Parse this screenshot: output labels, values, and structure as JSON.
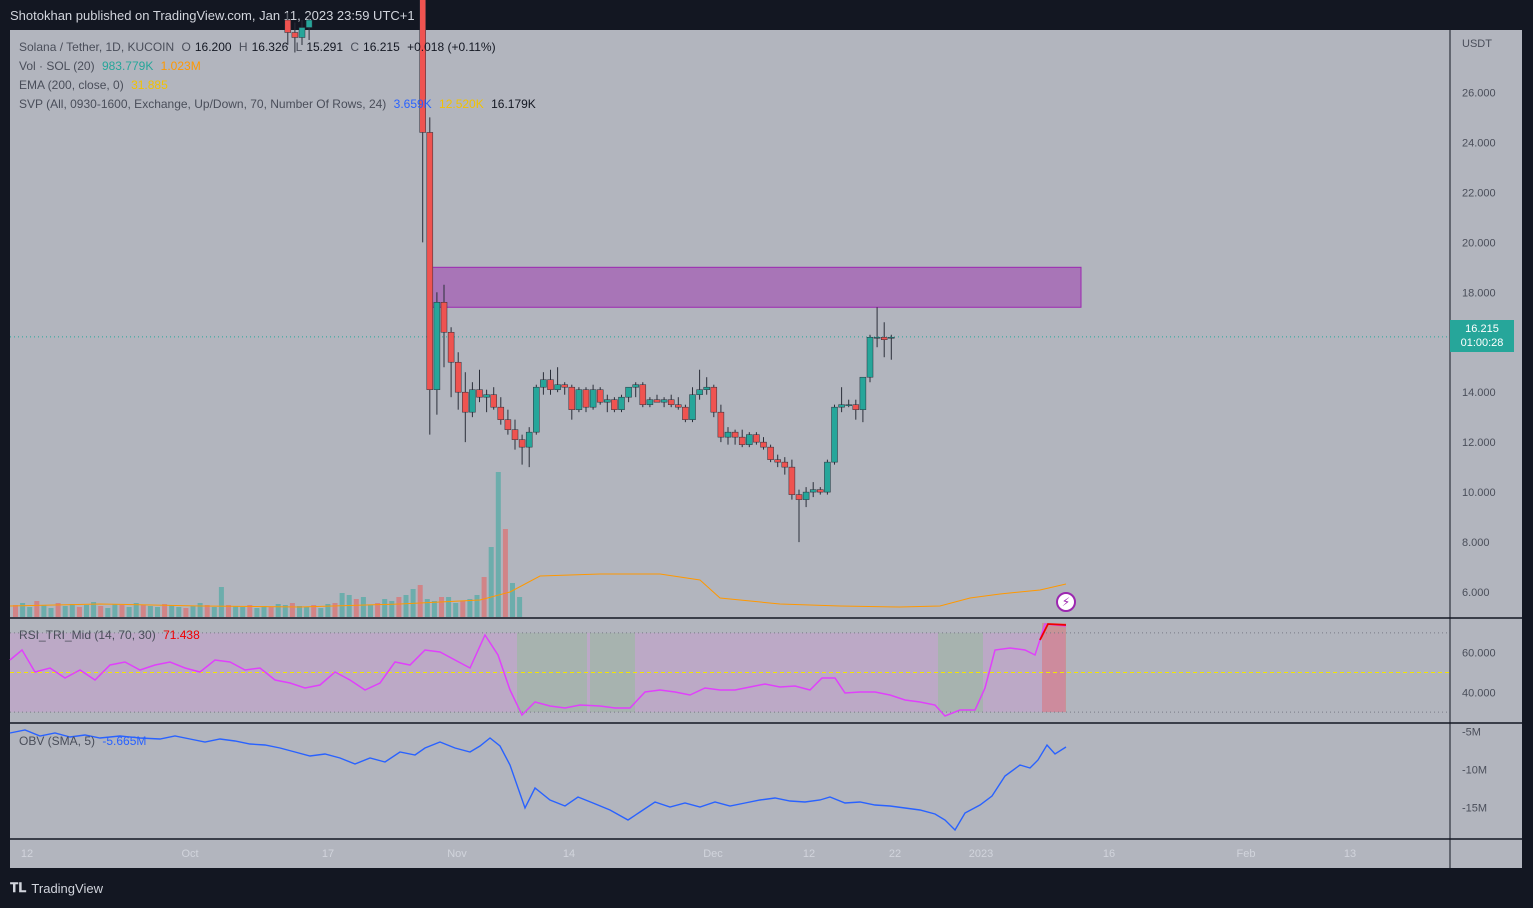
{
  "header": {
    "publisher_line": "Shotokhan published on TradingView.com, Jan 11, 2023 23:59 UTC+1"
  },
  "footer": {
    "brand": "TradingView"
  },
  "legend": {
    "symbol": "Solana / Tether, 1D, KUCOIN",
    "o_label": "O",
    "o_value": "16.200",
    "h_label": "H",
    "h_value": "16.326",
    "l_label": "L",
    "l_value": "15.291",
    "c_label": "C",
    "c_value": "16.215",
    "change": "+0.018 (+0.11%)",
    "vol_label": "Vol · SOL (20)",
    "vol_value": "983.779K",
    "vol_ma": "1.023M",
    "ema_label": "EMA (200, close, 0)",
    "ema_value": "31.885",
    "svp_label": "SVP (All, 0930-1600, Exchange, Up/Down, 70, Number Of Rows, 24)",
    "svp_up": "3.659K",
    "svp_down": "12.520K",
    "svp_total": "16.179K",
    "rsi_label": "RSI_TRI_Mid (14, 70, 30)",
    "rsi_value": "71.438",
    "obv_label": "OBV (SMA, 5)",
    "obv_value": "-5.665M"
  },
  "price_tag": {
    "price": "16.215",
    "countdown": "01:00:28"
  },
  "colors": {
    "background": "#131722",
    "pane": "#b2b5be",
    "up": "#26a69a",
    "down": "#ef5350",
    "zone": "#9c27b0",
    "rsi_line": "#e040fb",
    "obv_line": "#2962ff",
    "ema_line": "#ff9800"
  },
  "icons": {
    "lightning": "lightning-icon"
  },
  "chart_data": {
    "type": "candlestick",
    "symbol": "Solana / Tether",
    "interval": "1D",
    "exchange": "KUCOIN",
    "currency_label": "USDT",
    "price_axis": {
      "ticks": [
        "26.000",
        "24.000",
        "22.000",
        "20.000",
        "18.000",
        "16.000",
        "14.000",
        "12.000",
        "10.000",
        "8.000",
        "6.000"
      ],
      "ylim": [
        5,
        28.5
      ]
    },
    "rsi_axis": {
      "ticks": [
        "60.000",
        "40.000"
      ],
      "ylim": [
        25,
        77
      ]
    },
    "obv_axis": {
      "ticks": [
        "-5M",
        "-10M",
        "-15M"
      ],
      "ylim": [
        -19,
        -4
      ]
    },
    "time_axis": [
      "12",
      "Oct",
      "17",
      "Nov",
      "14",
      "Dec",
      "12",
      "22",
      "2023",
      "16",
      "Feb",
      "13"
    ],
    "resistance_zone": {
      "low": 17.4,
      "high": 19.0,
      "start": "2022-11-09",
      "end": "2023-02-09"
    },
    "last_price": 16.215,
    "candles": [
      {
        "d": "2022-10-20",
        "o": 28.9,
        "h": 29.2,
        "l": 27.9,
        "c": 28.4
      },
      {
        "d": "2022-10-21",
        "o": 28.4,
        "h": 28.8,
        "l": 27.6,
        "c": 28.2
      },
      {
        "d": "2022-10-22",
        "o": 28.2,
        "h": 28.9,
        "l": 27.9,
        "c": 28.6
      },
      {
        "d": "2022-10-23",
        "o": 28.6,
        "h": 29.1,
        "l": 28.1,
        "c": 28.9
      },
      {
        "d": "2022-11-07",
        "o": 32.0,
        "h": 33.0,
        "l": 30.0,
        "c": 31.0
      },
      {
        "d": "2022-11-08",
        "o": 31.0,
        "h": 31.5,
        "l": 20.0,
        "c": 24.4
      },
      {
        "d": "2022-11-09",
        "o": 24.4,
        "h": 25.0,
        "l": 12.3,
        "c": 14.1
      },
      {
        "d": "2022-11-10",
        "o": 14.1,
        "h": 18.0,
        "l": 13.1,
        "c": 17.6
      },
      {
        "d": "2022-11-11",
        "o": 17.6,
        "h": 18.3,
        "l": 15.0,
        "c": 16.4
      },
      {
        "d": "2022-11-12",
        "o": 16.4,
        "h": 16.6,
        "l": 13.8,
        "c": 15.2
      },
      {
        "d": "2022-11-13",
        "o": 15.2,
        "h": 15.6,
        "l": 13.3,
        "c": 14.0
      },
      {
        "d": "2022-11-14",
        "o": 14.0,
        "h": 14.8,
        "l": 12.0,
        "c": 13.2
      },
      {
        "d": "2022-11-15",
        "o": 13.2,
        "h": 14.4,
        "l": 13.0,
        "c": 14.1
      },
      {
        "d": "2022-11-16",
        "o": 14.1,
        "h": 14.9,
        "l": 13.6,
        "c": 13.8
      },
      {
        "d": "2022-11-17",
        "o": 13.8,
        "h": 14.1,
        "l": 13.2,
        "c": 13.9
      },
      {
        "d": "2022-11-18",
        "o": 13.9,
        "h": 14.2,
        "l": 13.3,
        "c": 13.4
      },
      {
        "d": "2022-11-19",
        "o": 13.4,
        "h": 13.8,
        "l": 12.7,
        "c": 12.9
      },
      {
        "d": "2022-11-20",
        "o": 12.9,
        "h": 13.3,
        "l": 12.3,
        "c": 12.5
      },
      {
        "d": "2022-11-21",
        "o": 12.5,
        "h": 12.9,
        "l": 11.7,
        "c": 12.1
      },
      {
        "d": "2022-11-22",
        "o": 12.1,
        "h": 12.3,
        "l": 11.1,
        "c": 11.8
      },
      {
        "d": "2022-11-23",
        "o": 11.8,
        "h": 12.6,
        "l": 11.0,
        "c": 12.4
      },
      {
        "d": "2022-11-24",
        "o": 12.4,
        "h": 14.3,
        "l": 12.3,
        "c": 14.2
      },
      {
        "d": "2022-11-25",
        "o": 14.2,
        "h": 14.8,
        "l": 13.9,
        "c": 14.5
      },
      {
        "d": "2022-11-26",
        "o": 14.5,
        "h": 14.9,
        "l": 13.9,
        "c": 14.1
      },
      {
        "d": "2022-11-27",
        "o": 14.1,
        "h": 15.0,
        "l": 14.0,
        "c": 14.3
      },
      {
        "d": "2022-11-28",
        "o": 14.3,
        "h": 14.4,
        "l": 13.9,
        "c": 14.2
      },
      {
        "d": "2022-11-29",
        "o": 14.2,
        "h": 14.3,
        "l": 12.9,
        "c": 13.3
      },
      {
        "d": "2022-11-30",
        "o": 13.3,
        "h": 14.2,
        "l": 13.2,
        "c": 14.1
      },
      {
        "d": "2022-12-01",
        "o": 14.1,
        "h": 14.2,
        "l": 13.2,
        "c": 13.4
      },
      {
        "d": "2022-12-02",
        "o": 13.4,
        "h": 14.3,
        "l": 13.3,
        "c": 14.1
      },
      {
        "d": "2022-12-03",
        "o": 14.1,
        "h": 14.2,
        "l": 13.5,
        "c": 13.6
      },
      {
        "d": "2022-12-04",
        "o": 13.6,
        "h": 13.9,
        "l": 13.2,
        "c": 13.7
      },
      {
        "d": "2022-12-05",
        "o": 13.7,
        "h": 13.8,
        "l": 13.2,
        "c": 13.3
      },
      {
        "d": "2022-12-06",
        "o": 13.3,
        "h": 13.9,
        "l": 13.2,
        "c": 13.8
      },
      {
        "d": "2022-12-07",
        "o": 13.8,
        "h": 14.2,
        "l": 13.6,
        "c": 14.2
      },
      {
        "d": "2022-12-08",
        "o": 14.2,
        "h": 14.4,
        "l": 13.8,
        "c": 14.3
      },
      {
        "d": "2022-12-09",
        "o": 14.3,
        "h": 14.4,
        "l": 13.4,
        "c": 13.5
      },
      {
        "d": "2022-12-10",
        "o": 13.5,
        "h": 13.8,
        "l": 13.4,
        "c": 13.7
      },
      {
        "d": "2022-12-11",
        "o": 13.7,
        "h": 13.9,
        "l": 13.6,
        "c": 13.6
      },
      {
        "d": "2022-12-12",
        "o": 13.6,
        "h": 13.8,
        "l": 13.4,
        "c": 13.7
      },
      {
        "d": "2022-12-13",
        "o": 13.7,
        "h": 13.9,
        "l": 13.4,
        "c": 13.5
      },
      {
        "d": "2022-12-14",
        "o": 13.5,
        "h": 13.8,
        "l": 13.3,
        "c": 13.4
      },
      {
        "d": "2022-12-15",
        "o": 13.4,
        "h": 13.5,
        "l": 12.8,
        "c": 12.9
      },
      {
        "d": "2022-12-16",
        "o": 12.9,
        "h": 14.2,
        "l": 12.8,
        "c": 13.9
      },
      {
        "d": "2022-12-17",
        "o": 13.9,
        "h": 14.9,
        "l": 13.7,
        "c": 14.1
      },
      {
        "d": "2022-12-18",
        "o": 14.1,
        "h": 14.6,
        "l": 13.9,
        "c": 14.2
      },
      {
        "d": "2022-12-19",
        "o": 14.2,
        "h": 14.3,
        "l": 13.0,
        "c": 13.2
      },
      {
        "d": "2022-12-20",
        "o": 13.2,
        "h": 13.5,
        "l": 12.0,
        "c": 12.2
      },
      {
        "d": "2022-12-21",
        "o": 12.2,
        "h": 12.6,
        "l": 11.9,
        "c": 12.4
      },
      {
        "d": "2022-12-22",
        "o": 12.4,
        "h": 12.5,
        "l": 11.9,
        "c": 12.2
      },
      {
        "d": "2022-12-23",
        "o": 12.2,
        "h": 12.5,
        "l": 11.8,
        "c": 11.9
      },
      {
        "d": "2022-12-24",
        "o": 11.9,
        "h": 12.4,
        "l": 11.8,
        "c": 12.3
      },
      {
        "d": "2022-12-25",
        "o": 12.3,
        "h": 12.4,
        "l": 11.9,
        "c": 12.0
      },
      {
        "d": "2022-12-26",
        "o": 12.0,
        "h": 12.2,
        "l": 11.7,
        "c": 11.8
      },
      {
        "d": "2022-12-27",
        "o": 11.8,
        "h": 11.9,
        "l": 11.2,
        "c": 11.3
      },
      {
        "d": "2022-12-28",
        "o": 11.3,
        "h": 11.5,
        "l": 11.0,
        "c": 11.2
      },
      {
        "d": "2022-12-29",
        "o": 11.2,
        "h": 11.4,
        "l": 10.7,
        "c": 11.0
      },
      {
        "d": "2022-12-30",
        "o": 11.0,
        "h": 11.3,
        "l": 9.7,
        "c": 9.9
      },
      {
        "d": "2022-12-31",
        "o": 9.9,
        "h": 10.1,
        "l": 8.0,
        "c": 9.7
      },
      {
        "d": "2023-01-01",
        "o": 9.7,
        "h": 10.2,
        "l": 9.4,
        "c": 10.0
      },
      {
        "d": "2023-01-02",
        "o": 10.0,
        "h": 10.4,
        "l": 9.8,
        "c": 10.1
      },
      {
        "d": "2023-01-03",
        "o": 10.1,
        "h": 10.2,
        "l": 9.9,
        "c": 10.0
      },
      {
        "d": "2023-01-04",
        "o": 10.0,
        "h": 11.3,
        "l": 9.9,
        "c": 11.2
      },
      {
        "d": "2023-01-05",
        "o": 11.2,
        "h": 13.5,
        "l": 11.1,
        "c": 13.4
      },
      {
        "d": "2023-01-06",
        "o": 13.4,
        "h": 14.2,
        "l": 13.2,
        "c": 13.5
      },
      {
        "d": "2023-01-07",
        "o": 13.5,
        "h": 13.7,
        "l": 13.4,
        "c": 13.5
      },
      {
        "d": "2023-01-08",
        "o": 13.5,
        "h": 13.7,
        "l": 12.9,
        "c": 13.3
      },
      {
        "d": "2023-01-09",
        "o": 13.3,
        "h": 14.5,
        "l": 12.8,
        "c": 14.6
      },
      {
        "d": "2023-01-10",
        "o": 14.6,
        "h": 16.3,
        "l": 14.4,
        "c": 16.2
      },
      {
        "d": "2023-01-11",
        "o": 16.2,
        "h": 17.4,
        "l": 15.8,
        "c": 16.2
      },
      {
        "d": "2023-01-12",
        "o": 16.2,
        "h": 16.8,
        "l": 15.4,
        "c": 16.1
      },
      {
        "d": "2023-01-13",
        "o": 16.2,
        "h": 16.3,
        "l": 15.3,
        "c": 16.2
      }
    ],
    "volume_notes": "Volume spikes around 2022-11-08 to 2022-11-10 and 2022-12-30 to 2023-01-11"
  }
}
